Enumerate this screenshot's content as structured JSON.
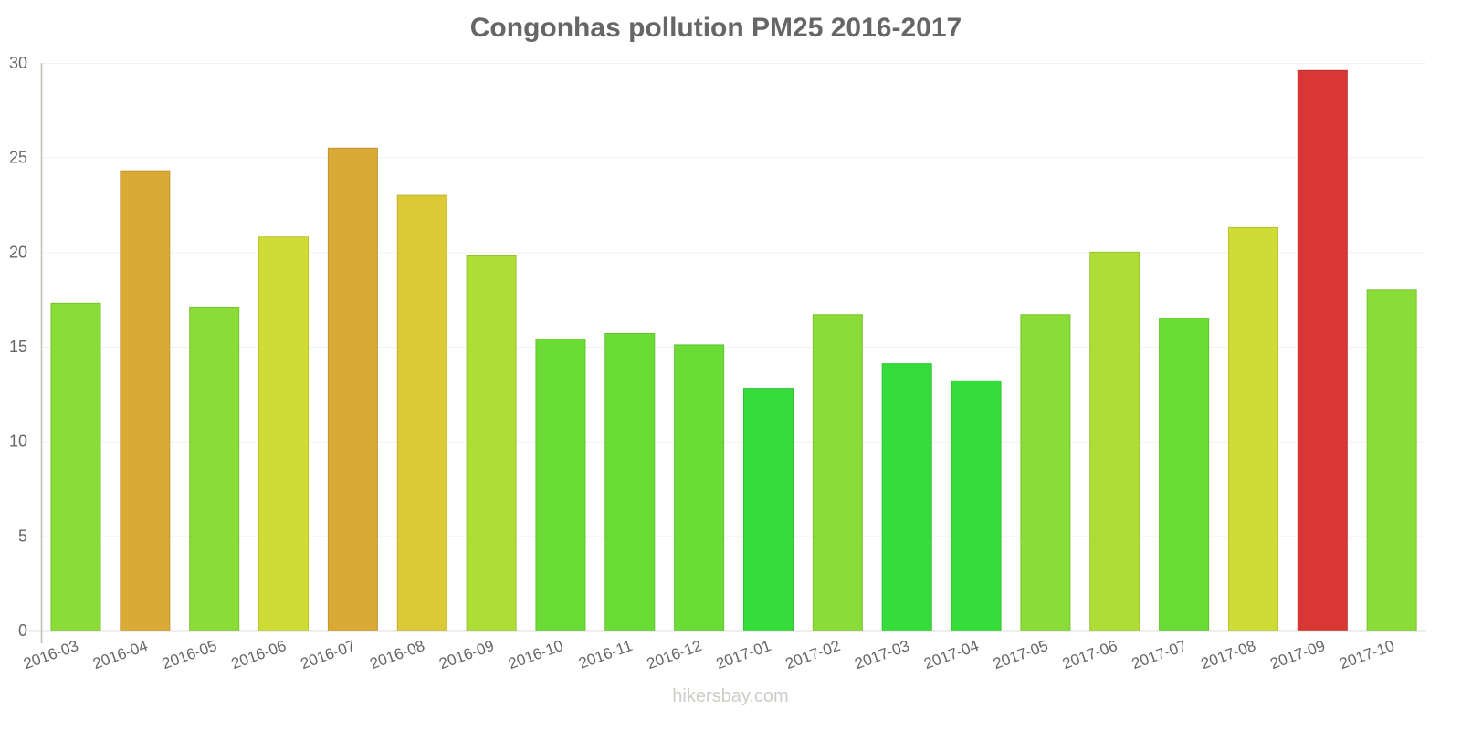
{
  "chart_data": {
    "type": "bar",
    "title": "Congonhas pollution PM25 2016-2017",
    "xlabel": "",
    "ylabel": "",
    "ylim": [
      0,
      30
    ],
    "yticks": [
      0,
      5,
      10,
      15,
      20,
      25,
      30
    ],
    "grid": true,
    "legend": null,
    "categories": [
      "2016-03",
      "2016-04",
      "2016-05",
      "2016-06",
      "2016-07",
      "2016-08",
      "2016-09",
      "2016-10",
      "2016-11",
      "2016-12",
      "2017-01",
      "2017-02",
      "2017-03",
      "2017-04",
      "2017-05",
      "2017-06",
      "2017-07",
      "2017-08",
      "2017-09",
      "2017-10"
    ],
    "values": [
      17.3,
      24.3,
      17.1,
      20.8,
      25.5,
      23.0,
      19.8,
      15.4,
      15.7,
      15.1,
      12.8,
      16.7,
      14.1,
      13.2,
      16.7,
      20.0,
      16.5,
      21.3,
      29.6,
      18.0
    ],
    "colors": [
      "#8adc36",
      "#dba936",
      "#8adc36",
      "#cfdc36",
      "#dba936",
      "#dbc936",
      "#aedd36",
      "#6bdc36",
      "#6bdc36",
      "#6bdc36",
      "#36dc3a",
      "#8adc36",
      "#36dc3a",
      "#36dc3a",
      "#8adc36",
      "#aedd36",
      "#6bdc36",
      "#cfdc36",
      "#db3636",
      "#8adc36"
    ]
  },
  "watermark": "hikersbay.com"
}
